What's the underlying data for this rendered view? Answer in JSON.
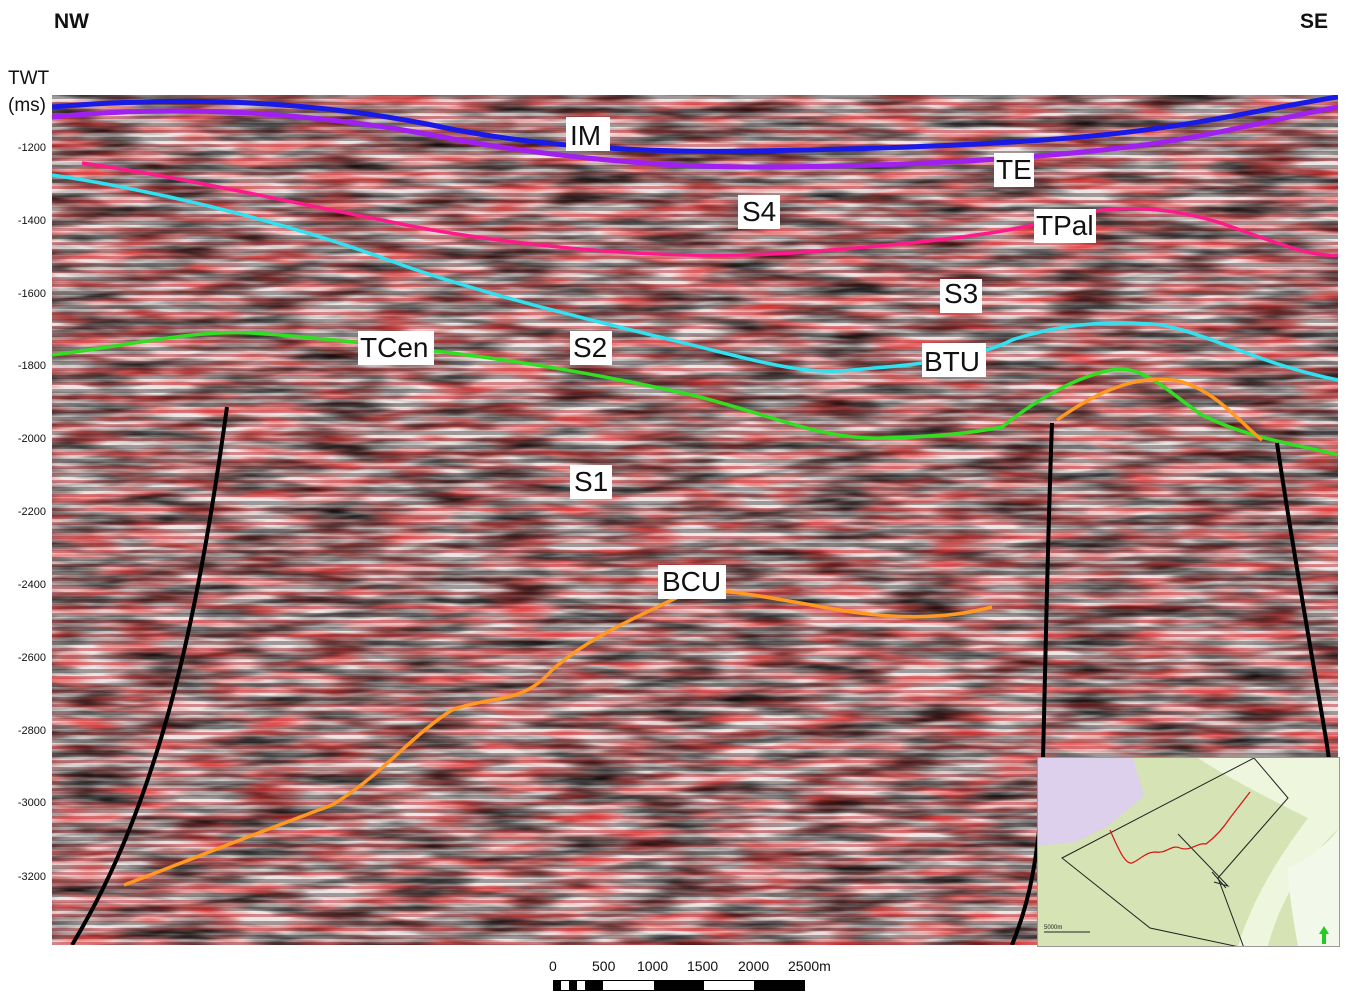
{
  "corners": {
    "left": "NW",
    "right": "SE"
  },
  "axis": {
    "title_line1": "TWT",
    "title_line2": "(ms)",
    "ticks": [
      "-1200",
      "-1400",
      "-1600",
      "-1800",
      "-2000",
      "-2200",
      "-2400",
      "-2600",
      "-2800",
      "-3000",
      "-3200"
    ]
  },
  "horizons": [
    {
      "label": "IM",
      "color": "#1a1ae6"
    },
    {
      "label": "TE",
      "color": "#a020f0"
    },
    {
      "label": "S4",
      "color": ""
    },
    {
      "label": "TPal",
      "color": "#ff1a8c"
    },
    {
      "label": "S3",
      "color": ""
    },
    {
      "label": "S2",
      "color": ""
    },
    {
      "label": "BTU",
      "color": "#33e0f0"
    },
    {
      "label": "TCen",
      "color": "#33dd22"
    },
    {
      "label": "S1",
      "color": ""
    },
    {
      "label": "BCU",
      "color": "#ff9922"
    }
  ],
  "fault_color": "#000000",
  "scale_bar": {
    "labels": [
      "0",
      "500",
      "1000",
      "1500",
      "2000",
      "2500m"
    ]
  },
  "inset_map": {
    "scale_label": "5000m",
    "north_arrow_color": "#22cc22"
  }
}
